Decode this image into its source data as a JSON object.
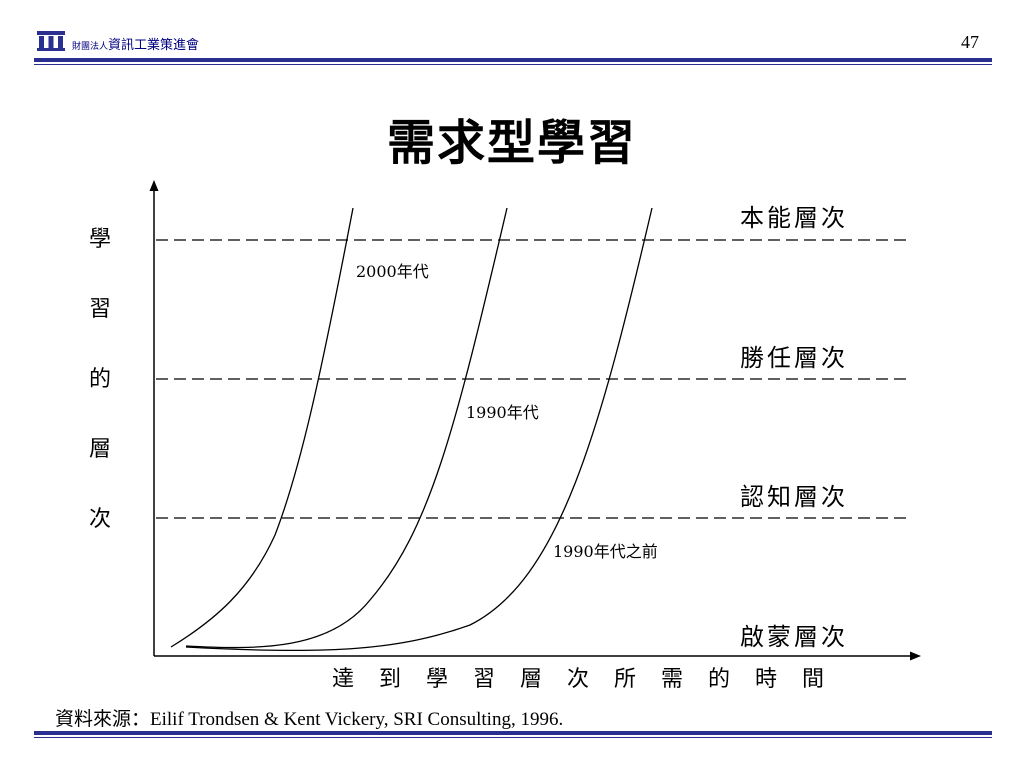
{
  "header": {
    "org_prefix": "財團法人",
    "org_name": "資訊工業策進會",
    "page_number": "47",
    "icon": "institute-building-icon",
    "accent_color": "#2b2f8f"
  },
  "title": "需求型學習",
  "diagram": {
    "y_axis_label_chars": [
      "學",
      "習",
      "的",
      "層",
      "次"
    ],
    "x_axis_label_chars": [
      "達",
      "到",
      "學",
      "習",
      "層",
      "次",
      "所",
      "需",
      "的",
      "時",
      "間"
    ],
    "levels": [
      "本能層次",
      "勝任層次",
      "認知層次",
      "啟蒙層次"
    ],
    "curves": [
      "2000年代",
      "1990年代",
      "1990年代之前"
    ]
  },
  "source": {
    "label": "資料來源：",
    "text": "Eilif Trondsen & Kent Vickery, SRI Consulting, 1996."
  }
}
